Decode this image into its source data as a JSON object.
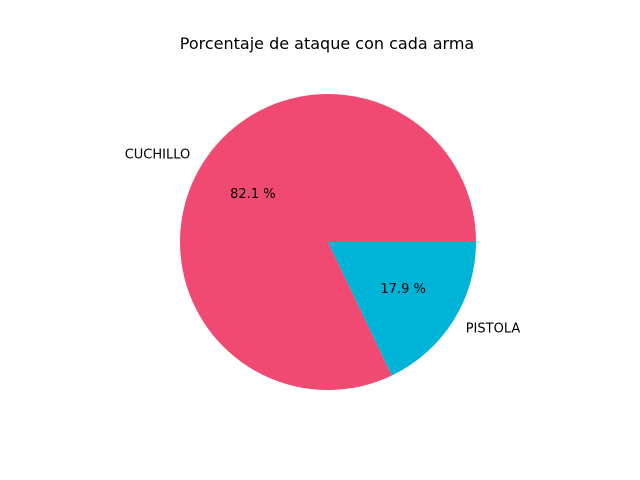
{
  "chart_data": {
    "type": "pie",
    "title": "Porcentaje de ataque con cada arma",
    "categories": [
      "CUCHILLO",
      "PISTOLA"
    ],
    "values": [
      82.1,
      17.9
    ],
    "percent_labels": [
      "82.1 %",
      "17.9 %"
    ],
    "colors": [
      "#f14a72",
      "#00b4d8"
    ],
    "start_angle_deg": 0,
    "direction": "counterclockwise"
  }
}
